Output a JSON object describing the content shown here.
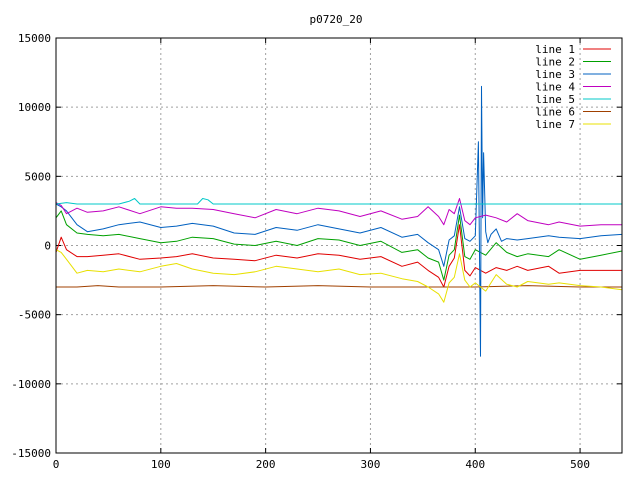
{
  "chart_data": {
    "type": "line",
    "title": "p0720_20",
    "xlabel": "",
    "ylabel": "",
    "xlim": [
      0,
      540
    ],
    "ylim": [
      -15000,
      15000
    ],
    "xticks": [
      0,
      100,
      200,
      300,
      400,
      500
    ],
    "yticks": [
      -15000,
      -10000,
      -5000,
      0,
      5000,
      10000,
      15000
    ],
    "xtick_labels": [
      "0",
      "100",
      "200",
      "300",
      "400",
      "500"
    ],
    "ytick_labels": [
      "-15000",
      "-10000",
      "-5000",
      "0",
      "5000",
      "10000",
      "15000"
    ],
    "grid": true,
    "legend_position": "top-right",
    "series": [
      {
        "name": "line 1",
        "color": "#e00000",
        "x": [
          0,
          5,
          10,
          20,
          30,
          45,
          60,
          80,
          100,
          115,
          130,
          150,
          170,
          190,
          210,
          230,
          250,
          270,
          290,
          310,
          330,
          345,
          355,
          365,
          370,
          375,
          380,
          385,
          390,
          395,
          400,
          410,
          420,
          430,
          440,
          450,
          470,
          480,
          500,
          520,
          540
        ],
        "y": [
          -500,
          600,
          -300,
          -800,
          -800,
          -700,
          -600,
          -1000,
          -900,
          -800,
          -600,
          -900,
          -1000,
          -1100,
          -700,
          -900,
          -600,
          -700,
          -1000,
          -800,
          -1500,
          -1200,
          -1800,
          -2300,
          -3000,
          -1500,
          -900,
          1500,
          -1800,
          -2200,
          -1600,
          -2000,
          -1600,
          -1800,
          -1500,
          -1800,
          -1500,
          -2000,
          -1800,
          -1800,
          -1800
        ]
      },
      {
        "name": "line 2",
        "color": "#00a000",
        "x": [
          0,
          5,
          10,
          20,
          30,
          45,
          60,
          80,
          100,
          115,
          130,
          150,
          170,
          190,
          210,
          230,
          250,
          270,
          290,
          310,
          330,
          345,
          355,
          365,
          370,
          375,
          380,
          385,
          390,
          395,
          400,
          410,
          420,
          430,
          440,
          450,
          470,
          480,
          500,
          520,
          540
        ],
        "y": [
          2000,
          2500,
          1500,
          900,
          800,
          700,
          800,
          500,
          200,
          300,
          600,
          500,
          100,
          0,
          300,
          0,
          500,
          400,
          0,
          300,
          -500,
          -300,
          -900,
          -1200,
          -2500,
          -700,
          -300,
          2200,
          -800,
          -1000,
          -300,
          -700,
          200,
          -500,
          -800,
          -600,
          -800,
          -300,
          -1000,
          -700,
          -400
        ]
      },
      {
        "name": "line 3",
        "color": "#0060c0",
        "x": [
          0,
          5,
          10,
          20,
          30,
          45,
          60,
          80,
          100,
          115,
          130,
          150,
          170,
          190,
          210,
          230,
          250,
          270,
          290,
          310,
          330,
          345,
          355,
          365,
          370,
          375,
          380,
          385,
          390,
          395,
          400,
          403,
          405,
          406,
          407,
          408,
          410,
          412,
          415,
          420,
          425,
          430,
          440,
          450,
          470,
          480,
          500,
          520,
          540
        ],
        "y": [
          3000,
          2800,
          2500,
          1500,
          1000,
          1200,
          1500,
          1700,
          1300,
          1400,
          1600,
          1400,
          900,
          800,
          1300,
          1100,
          1500,
          1200,
          900,
          1300,
          600,
          800,
          200,
          -300,
          -1500,
          400,
          700,
          2800,
          500,
          300,
          700,
          7500,
          -8000,
          11500,
          2000,
          6700,
          1000,
          200,
          800,
          1200,
          300,
          500,
          400,
          500,
          700,
          600,
          500,
          700,
          800
        ]
      },
      {
        "name": "line 4",
        "color": "#c000c0",
        "x": [
          0,
          5,
          10,
          20,
          30,
          45,
          60,
          80,
          100,
          115,
          130,
          150,
          170,
          190,
          210,
          230,
          250,
          270,
          290,
          310,
          330,
          345,
          355,
          365,
          370,
          375,
          380,
          385,
          390,
          395,
          400,
          410,
          420,
          430,
          440,
          450,
          470,
          480,
          500,
          520,
          540
        ],
        "y": [
          3100,
          2900,
          2300,
          2700,
          2400,
          2500,
          2800,
          2300,
          2800,
          2700,
          2700,
          2600,
          2300,
          2000,
          2600,
          2300,
          2700,
          2500,
          2100,
          2500,
          1900,
          2100,
          2800,
          2100,
          1500,
          2600,
          2300,
          3400,
          1800,
          1500,
          2000,
          2200,
          2000,
          1700,
          2300,
          1800,
          1500,
          1700,
          1400,
          1500,
          1500
        ]
      },
      {
        "name": "line 5",
        "color": "#00c8c8",
        "x": [
          0,
          10,
          20,
          60,
          70,
          75,
          80,
          100,
          135,
          140,
          145,
          150,
          200,
          250,
          300,
          350,
          400,
          450,
          500,
          540
        ],
        "y": [
          3000,
          3100,
          3000,
          3000,
          3200,
          3400,
          3000,
          3000,
          3000,
          3400,
          3300,
          3000,
          3000,
          3000,
          3000,
          3000,
          3000,
          3000,
          3000,
          3000
        ]
      },
      {
        "name": "line 6",
        "color": "#a04000",
        "x": [
          0,
          20,
          40,
          60,
          80,
          100,
          150,
          200,
          250,
          300,
          350,
          400,
          450,
          500,
          540
        ],
        "y": [
          -3000,
          -3000,
          -2900,
          -3000,
          -3000,
          -3000,
          -2900,
          -3000,
          -2900,
          -3000,
          -3000,
          -3000,
          -2900,
          -3000,
          -3000
        ]
      },
      {
        "name": "line 7",
        "color": "#e8e000",
        "x": [
          0,
          5,
          10,
          20,
          30,
          45,
          60,
          80,
          100,
          115,
          130,
          150,
          170,
          190,
          210,
          230,
          250,
          270,
          290,
          310,
          330,
          345,
          355,
          365,
          370,
          375,
          380,
          385,
          390,
          395,
          400,
          410,
          420,
          430,
          440,
          450,
          470,
          480,
          500,
          520,
          540
        ],
        "y": [
          -300,
          -500,
          -1000,
          -2000,
          -1800,
          -1900,
          -1700,
          -1900,
          -1500,
          -1300,
          -1700,
          -2000,
          -2100,
          -1900,
          -1500,
          -1700,
          -1900,
          -1700,
          -2100,
          -2000,
          -2400,
          -2600,
          -3000,
          -3500,
          -4100,
          -2700,
          -2300,
          -600,
          -2500,
          -3000,
          -2700,
          -3300,
          -2100,
          -2800,
          -3000,
          -2600,
          -2800,
          -2700,
          -2900,
          -3000,
          -3200
        ]
      }
    ]
  }
}
